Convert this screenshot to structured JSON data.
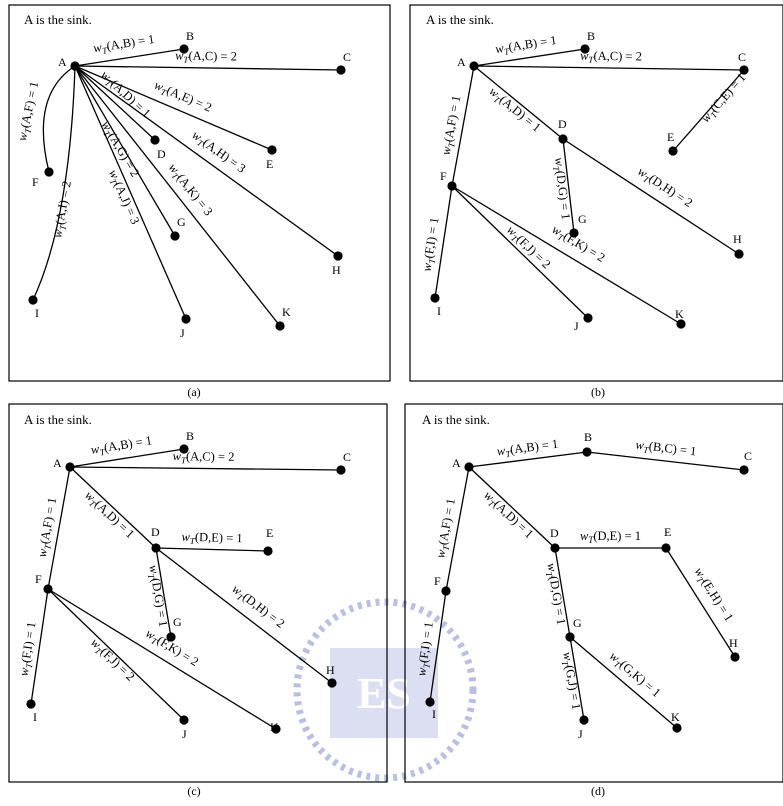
{
  "sink_note": "A is the sink.",
  "panels": [
    {
      "caption": "(a)",
      "edges": [
        {
          "from": "A",
          "to": "B",
          "label": "w_T(A,B) = 1"
        },
        {
          "from": "A",
          "to": "C",
          "label": "w_T(A,C) = 2"
        },
        {
          "from": "A",
          "to": "E",
          "label": "w_T(A,E) = 2"
        },
        {
          "from": "A",
          "to": "D",
          "label": "w_T(A,D) = 1"
        },
        {
          "from": "A",
          "to": "H",
          "label": "w_T(A,H) = 3"
        },
        {
          "from": "A",
          "to": "G",
          "label": "w_T(A,G) = 2"
        },
        {
          "from": "A",
          "to": "K",
          "label": "w_T(A,K) = 3"
        },
        {
          "from": "A",
          "to": "J",
          "label": "w_T(A,J) = 3"
        },
        {
          "from": "A",
          "to": "F",
          "label": "w_T(A,F) = 1"
        },
        {
          "from": "A",
          "to": "I",
          "label": "w_T(A,I) = 2"
        }
      ]
    },
    {
      "caption": "(b)",
      "edges": [
        {
          "from": "A",
          "to": "B",
          "label": "w_T(A,B) = 1"
        },
        {
          "from": "A",
          "to": "C",
          "label": "w_T(A,C) = 2"
        },
        {
          "from": "C",
          "to": "E",
          "label": "w_T(C,E) = 1"
        },
        {
          "from": "A",
          "to": "D",
          "label": "w_T(A,D) = 1"
        },
        {
          "from": "D",
          "to": "G",
          "label": "w_T(D,G) = 1"
        },
        {
          "from": "D",
          "to": "H",
          "label": "w_T(D,H) = 2"
        },
        {
          "from": "A",
          "to": "F",
          "label": "w_T(A,F) = 1"
        },
        {
          "from": "F",
          "to": "I",
          "label": "w_T(F,I) = 1"
        },
        {
          "from": "F",
          "to": "J",
          "label": "w_T(F,J) = 2"
        },
        {
          "from": "F",
          "to": "K",
          "label": "w_T(F,K) = 2"
        }
      ]
    },
    {
      "caption": "(c)",
      "edges": [
        {
          "from": "A",
          "to": "B",
          "label": "w_T(A,B) = 1"
        },
        {
          "from": "A",
          "to": "C",
          "label": "w_T(A,C) = 2"
        },
        {
          "from": "A",
          "to": "D",
          "label": "w_T(A,D) = 1"
        },
        {
          "from": "D",
          "to": "E",
          "label": "w_T(D,E) = 1"
        },
        {
          "from": "D",
          "to": "G",
          "label": "w_T(D,G) = 1"
        },
        {
          "from": "D",
          "to": "H",
          "label": "w_T(D,H) = 2"
        },
        {
          "from": "A",
          "to": "F",
          "label": "w_T(A,F) = 1"
        },
        {
          "from": "F",
          "to": "I",
          "label": "w_T(F,I) = 1"
        },
        {
          "from": "F",
          "to": "J",
          "label": "w_T(F,J) = 2"
        },
        {
          "from": "F",
          "to": "K",
          "label": "w_T(F,K) = 2"
        }
      ]
    },
    {
      "caption": "(d)",
      "edges": [
        {
          "from": "A",
          "to": "B",
          "label": "w_T(A,B) = 1"
        },
        {
          "from": "B",
          "to": "C",
          "label": "w_T(B,C) = 1"
        },
        {
          "from": "A",
          "to": "D",
          "label": "w_T(A,D) = 1"
        },
        {
          "from": "D",
          "to": "E",
          "label": "w_T(D,E) = 1"
        },
        {
          "from": "E",
          "to": "H",
          "label": "w_T(E,H) = 1"
        },
        {
          "from": "D",
          "to": "G",
          "label": "w_T(D,G) = 1"
        },
        {
          "from": "G",
          "to": "J",
          "label": "w_T(G,J) = 1"
        },
        {
          "from": "G",
          "to": "K",
          "label": "w_T(G,K) = 1"
        },
        {
          "from": "A",
          "to": "F",
          "label": "w_T(A,F) = 1"
        },
        {
          "from": "F",
          "to": "I",
          "label": "w_T(F,I) = 1"
        }
      ]
    }
  ],
  "watermark": {
    "text": "ES",
    "color": "#3a4bb0"
  }
}
